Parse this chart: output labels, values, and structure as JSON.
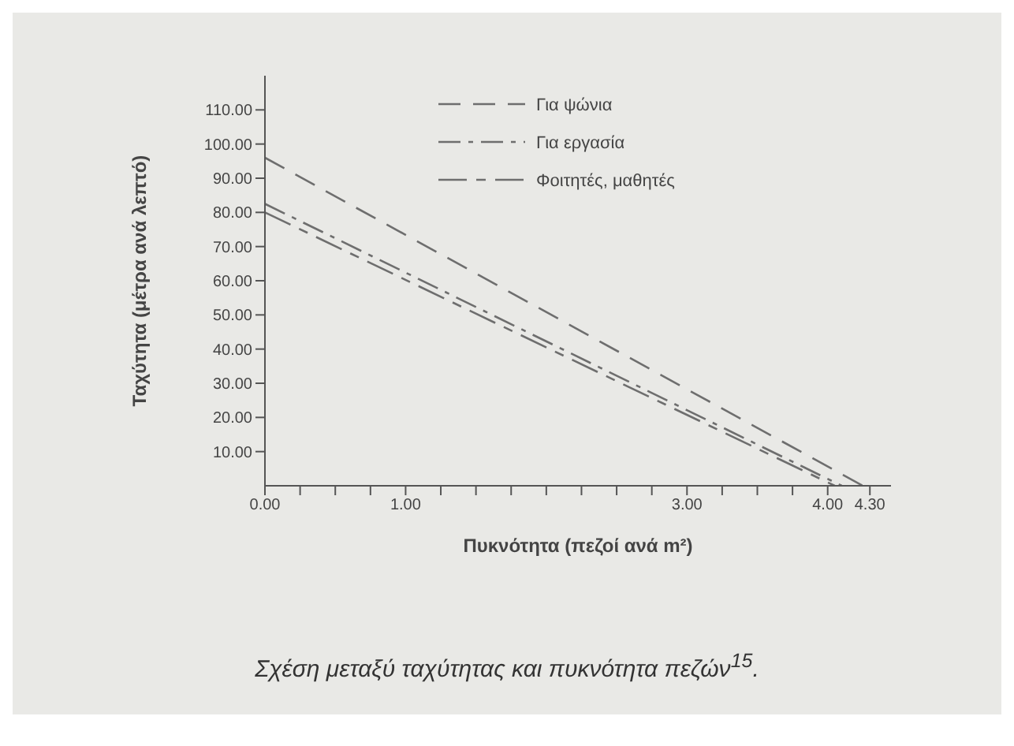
{
  "chart_data": {
    "type": "line",
    "xlabel": "Πυκνότητα (πεζοί ανά m²)",
    "ylabel": "Ταχύτητα (μέτρα ανά λεπτό)",
    "annotations": [
      "Σχέση μεταξύ ταχύτητας και πυκνότητα πεζών$^{15}$."
    ],
    "series": [
      {
        "name": "Για ψώνια",
        "color": "#6e6e6e",
        "x": [
          0,
          4.25
        ],
        "values": [
          96,
          0
        ],
        "line_style": "dashed"
      },
      {
        "name": "Για εργασία",
        "color": "#6e6e6e",
        "x": [
          0,
          4.1
        ],
        "values": [
          82.5,
          0
        ],
        "line_style": "dashed"
      },
      {
        "name": "Φοιτητές, μαθητές",
        "color": "#6e6e6e",
        "x": [
          0,
          4.05
        ],
        "values": [
          80,
          0
        ],
        "line_style": "dashed"
      }
    ],
    "xlim": [
      0,
      4.45
    ],
    "xticks": [
      {
        "value": 0,
        "label": "0.00"
      },
      {
        "value": 0.25,
        "label": null
      },
      {
        "value": 0.5,
        "label": null
      },
      {
        "value": 0.75,
        "label": null
      },
      {
        "value": 1,
        "label": "1.00"
      },
      {
        "value": 1.25,
        "label": null
      },
      {
        "value": 1.5,
        "label": null
      },
      {
        "value": 1.75,
        "label": null
      },
      {
        "value": 2,
        "label": null
      },
      {
        "value": 2.25,
        "label": null
      },
      {
        "value": 2.5,
        "label": null
      },
      {
        "value": 2.75,
        "label": null
      },
      {
        "value": 3,
        "label": "3.00"
      },
      {
        "value": 3.25,
        "label": null
      },
      {
        "value": 3.5,
        "label": null
      },
      {
        "value": 3.75,
        "label": null
      },
      {
        "value": 4,
        "label": "4.00"
      },
      {
        "value": 4.3,
        "label": "4.30"
      }
    ],
    "ylim": [
      0,
      120
    ],
    "yticks": [
      {
        "value": 10,
        "label": "10.00"
      },
      {
        "value": 20,
        "label": "20.00"
      },
      {
        "value": 30,
        "label": "30.00"
      },
      {
        "value": 40,
        "label": "40.00"
      },
      {
        "value": 50,
        "label": "50.00"
      },
      {
        "value": 60,
        "label": "60.00"
      },
      {
        "value": 70,
        "label": "70.00"
      },
      {
        "value": 80,
        "label": "80.00"
      },
      {
        "value": 90,
        "label": "90.00"
      },
      {
        "value": 100,
        "label": "100.00"
      },
      {
        "value": 110,
        "label": "110.00"
      }
    ],
    "grid": false,
    "legend": "top",
    "marker": "none"
  }
}
